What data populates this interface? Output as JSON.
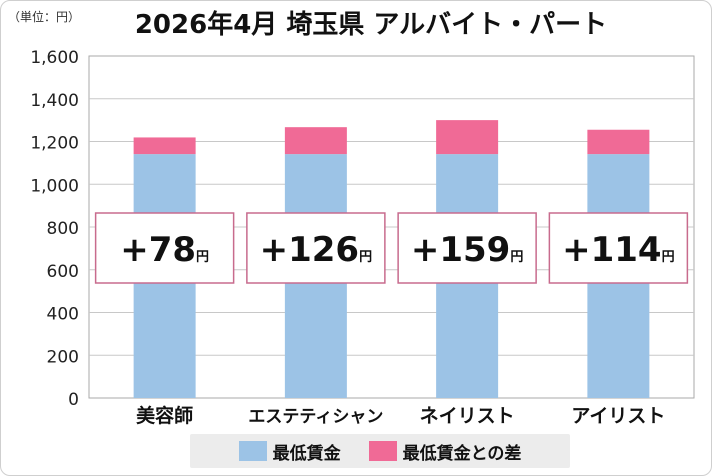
{
  "unit_label": "（単位：円）",
  "colors": {
    "base": "#9cc3e6",
    "diff": "#f06a96",
    "grid": "#c8c8c8",
    "box_border": "#c86b8d"
  },
  "chart_data": {
    "type": "bar",
    "stacked": true,
    "title": "2026年4月 埼玉県 アルバイト・パート",
    "categories": [
      "美容師",
      "エステティシャン",
      "ネイリスト",
      "アイリスト"
    ],
    "series": [
      {
        "name": "最低賃金",
        "values": [
          1141,
          1141,
          1141,
          1141
        ]
      },
      {
        "name": "最低賃金との差",
        "values": [
          78,
          126,
          159,
          114
        ]
      }
    ],
    "annotations": [
      "+78",
      "+126",
      "+159",
      "+114"
    ],
    "annotation_unit": "円",
    "ylim": [
      0,
      1600
    ],
    "yticks": [
      "0",
      "200",
      "400",
      "600",
      "800",
      "1,000",
      "1,200",
      "1,400",
      "1,600"
    ],
    "grid": true,
    "legend_position": "bottom"
  }
}
